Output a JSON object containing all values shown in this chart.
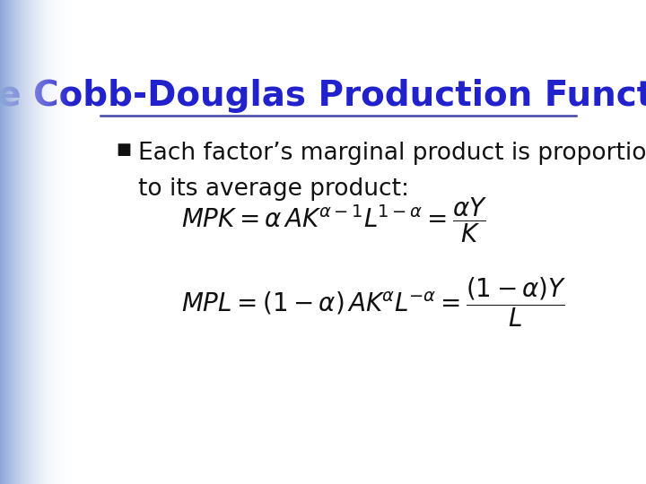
{
  "title": "The Cobb-Douglas Production Function",
  "title_color": "#2222CC",
  "title_fontsize": 28,
  "bullet_text_line1": "Each factor’s marginal product is proportional",
  "bullet_text_line2": "to its average product:",
  "bullet_fontsize": 19,
  "text_color": "#111111",
  "bg_color": "#FFFFFF",
  "separator_color": "#4444AA",
  "eq_fontsize": 20,
  "eq_color": "#111111"
}
